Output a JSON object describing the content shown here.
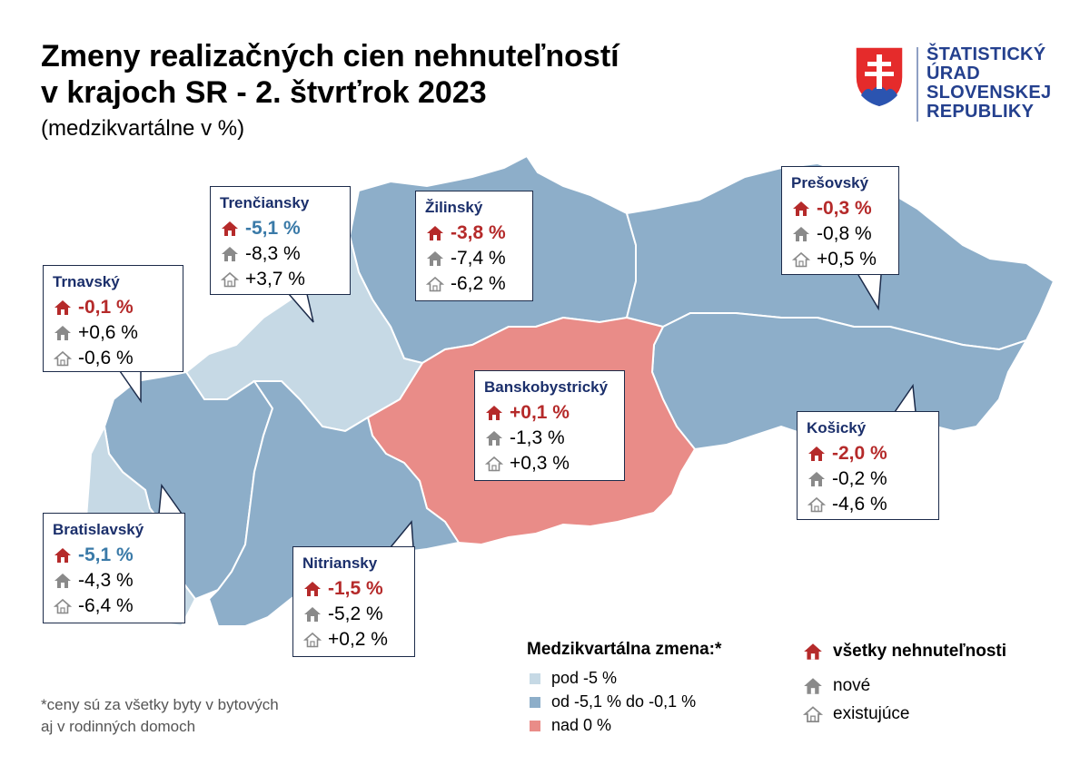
{
  "title": {
    "line1": "Zmeny realizačných cien nehnuteľností",
    "line2": "v krajoch SR - 2. štvrťrok  2023",
    "subtitle": "(medzikvartálne v %)"
  },
  "logo": {
    "lines": [
      "ŠTATISTICKÝ",
      "ÚRAD",
      "SLOVENSKEJ",
      "REPUBLIKY"
    ]
  },
  "regions": [
    {
      "name": "Bratislavský",
      "all": "-5,1 %",
      "new": "-4,3 %",
      "existing": "-6,4 %",
      "category": "pod -5 %",
      "color": "#c6d9e5"
    },
    {
      "name": "Trnavský",
      "all": "-0,1 %",
      "new": "+0,6 %",
      "existing": "-0,6 %",
      "category": "od -5,1 % do -0,1 %",
      "color": "#8daec9"
    },
    {
      "name": "Trenčiansky",
      "all": "-5,1 %",
      "new": "-8,3 %",
      "existing": "+3,7 %",
      "category": "pod -5 %",
      "color": "#c6d9e5"
    },
    {
      "name": "Nitriansky",
      "all": "-1,5 %",
      "new": "-5,2 %",
      "existing": "+0,2 %",
      "category": "od -5,1 % do -0,1 %",
      "color": "#8daec9"
    },
    {
      "name": "Žilinský",
      "all": "-3,8 %",
      "new": "-7,4 %",
      "existing": "-6,2 %",
      "category": "od -5,1 % do -0,1 %",
      "color": "#8daec9"
    },
    {
      "name": "Banskobystrický",
      "all": "+0,1 %",
      "new": "-1,3 %",
      "existing": "+0,3 %",
      "category": "nad 0 %",
      "color": "#e98c88"
    },
    {
      "name": "Prešovský",
      "all": "-0,3 %",
      "new": "-0,8 %",
      "existing": "+0,5 %",
      "category": "od -5,1 % do -0,1 %",
      "color": "#8daec9"
    },
    {
      "name": "Košický",
      "all": "-2,0 %",
      "new": "-0,2 %",
      "existing": "-4,6 %",
      "category": "od -5,1 % do -0,1 %",
      "color": "#8daec9"
    }
  ],
  "legend": {
    "title": "Medzikvartálna zmena:*",
    "items": [
      {
        "label": "pod -5 %",
        "color": "#c6d9e5"
      },
      {
        "label": "od -5,1 % do -0,1 %",
        "color": "#8daec9"
      },
      {
        "label": "nad 0 %",
        "color": "#e98c88"
      }
    ],
    "icons": [
      {
        "label": "všetky nehnuteľnosti",
        "icon": "house-filled-red-icon",
        "color": "#b52a2a"
      },
      {
        "label": "nové",
        "icon": "house-filled-gray-icon",
        "color": "#8a8a8a"
      },
      {
        "label": "existujúce",
        "icon": "house-outline-gray-icon",
        "color": "#8a8a8a"
      }
    ]
  },
  "footnote": {
    "line1": "*ceny sú za všetky byty v bytových",
    "line2": "aj v rodinných domoch"
  },
  "colors": {
    "accent_red": "#b52a2a",
    "accent_blue": "#3a7aa8",
    "brand_blue": "#24408e"
  }
}
